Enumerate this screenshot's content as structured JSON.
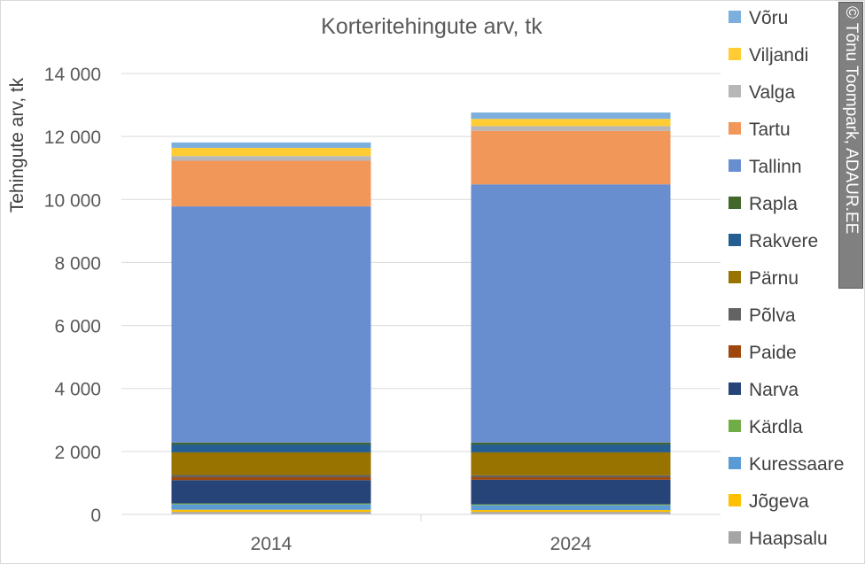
{
  "chart_data": {
    "type": "bar",
    "stacked": true,
    "title": "Korteritehingute arv, tk",
    "ylabel": "Tehingute arv, tk",
    "xlabel": "",
    "categories": [
      "2014",
      "2024"
    ],
    "ylim": [
      0,
      14000
    ],
    "yticks": [
      0,
      2000,
      4000,
      6000,
      8000,
      10000,
      12000,
      14000
    ],
    "ytick_labels": [
      "0",
      "2 000",
      "4 000",
      "6 000",
      "8 000",
      "10 000",
      "12 000",
      "14 000"
    ],
    "grid": true,
    "legend_position": "right",
    "series": [
      {
        "name": "Haapsalu",
        "color": "#a5a5a5",
        "values": [
          80,
          80
        ]
      },
      {
        "name": "Jõgeva",
        "color": "#ffc000",
        "values": [
          70,
          60
        ]
      },
      {
        "name": "Kuressaare",
        "color": "#5b9bd5",
        "values": [
          170,
          150
        ]
      },
      {
        "name": "Kärdla",
        "color": "#70ad47",
        "values": [
          30,
          30
        ]
      },
      {
        "name": "Narva",
        "color": "#264478",
        "values": [
          740,
          780
        ]
      },
      {
        "name": "Paide",
        "color": "#9e480e",
        "values": [
          90,
          80
        ]
      },
      {
        "name": "Põlva",
        "color": "#636363",
        "values": [
          70,
          60
        ]
      },
      {
        "name": "Pärnu",
        "color": "#997300",
        "values": [
          720,
          730
        ]
      },
      {
        "name": "Rakvere",
        "color": "#255e91",
        "values": [
          250,
          250
        ]
      },
      {
        "name": "Rapla",
        "color": "#43682b",
        "values": [
          60,
          60
        ]
      },
      {
        "name": "Tallinn",
        "color": "#698ed0",
        "values": [
          7500,
          8200
        ]
      },
      {
        "name": "Tartu",
        "color": "#f1975a",
        "values": [
          1450,
          1700
        ]
      },
      {
        "name": "Valga",
        "color": "#b7b7b7",
        "values": [
          150,
          150
        ]
      },
      {
        "name": "Viljandi",
        "color": "#ffcd33",
        "values": [
          260,
          230
        ]
      },
      {
        "name": "Võru",
        "color": "#7cafdd",
        "values": [
          170,
          200
        ]
      }
    ]
  },
  "credit": "© Tõnu Toompark, ADAUR.EE"
}
